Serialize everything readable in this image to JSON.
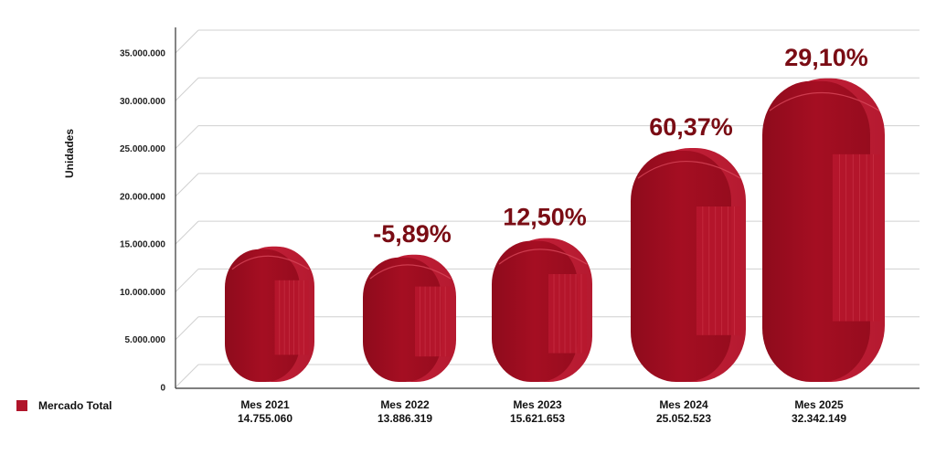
{
  "chart_data": {
    "type": "bar",
    "ylabel": "Unidades",
    "categories": [
      "Mes 2021",
      "Mes 2022",
      "Mes 2023",
      "Mes 2024",
      "Mes 2025"
    ],
    "series": [
      {
        "name": "Mercado Total",
        "values": [
          14755060,
          13886319,
          15621653,
          25052523,
          32342149
        ],
        "value_labels": [
          "14.755.060",
          "13.886.319",
          "15.621.653",
          "25.052.523",
          "32.342.149"
        ]
      }
    ],
    "growth_labels": [
      "",
      "-5,89%",
      "12,50%",
      "60,37%",
      "29,10%"
    ],
    "yticks": [
      0,
      5000000,
      10000000,
      15000000,
      20000000,
      25000000,
      30000000,
      35000000
    ],
    "ytick_labels": [
      "0",
      "5.000.000",
      "10.000.000",
      "15.000.000",
      "20.000.000",
      "25.000.000",
      "30.000.000",
      "35.000.000"
    ],
    "ylim": [
      0,
      35000000
    ],
    "grid": true,
    "legend_position": "bottom-left",
    "colors": {
      "bar": "#a50e22",
      "bar_highlight": "#c8213a",
      "growth_label": "#7a0c14",
      "grid": "#d0d0d0"
    }
  },
  "legend": {
    "label": "Mercado Total"
  }
}
